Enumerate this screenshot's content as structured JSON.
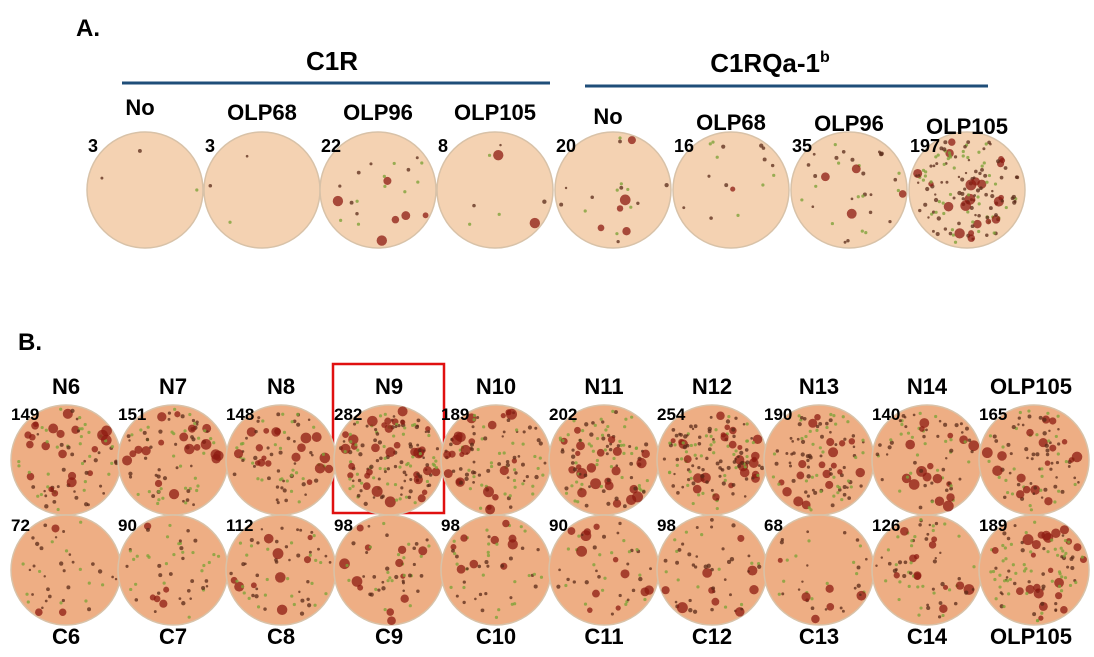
{
  "panel_a": {
    "label": "A.",
    "groups": [
      {
        "title": "C1R"
      },
      {
        "title": "C1RQa-1",
        "superscript": "b"
      }
    ],
    "wells": [
      {
        "label": "No",
        "count": 3
      },
      {
        "label": "OLP68",
        "count": 3
      },
      {
        "label": "OLP96",
        "count": 22
      },
      {
        "label": "OLP105",
        "count": 8
      },
      {
        "label": "No",
        "count": 20
      },
      {
        "label": "OLP68",
        "count": 16
      },
      {
        "label": "OLP96",
        "count": 35
      },
      {
        "label": "OLP105",
        "count": 197
      }
    ]
  },
  "panel_b": {
    "label": "B.",
    "rows": [
      {
        "wells": [
          {
            "label": "N6",
            "count": 149
          },
          {
            "label": "N7",
            "count": 151
          },
          {
            "label": "N8",
            "count": 148
          },
          {
            "label": "N9",
            "count": 282
          },
          {
            "label": "N10",
            "count": 189
          },
          {
            "label": "N11",
            "count": 202
          },
          {
            "label": "N12",
            "count": 254
          },
          {
            "label": "N13",
            "count": 190
          },
          {
            "label": "N14",
            "count": 140
          },
          {
            "label": "OLP105",
            "count": 165
          }
        ]
      },
      {
        "wells": [
          {
            "label": "C6",
            "count": 72
          },
          {
            "label": "C7",
            "count": 90
          },
          {
            "label": "C8",
            "count": 112
          },
          {
            "label": "C9",
            "count": 98
          },
          {
            "label": "C10",
            "count": 98
          },
          {
            "label": "C11",
            "count": 90
          },
          {
            "label": "C12",
            "count": 98
          },
          {
            "label": "C13",
            "count": 68
          },
          {
            "label": "C14",
            "count": 126
          },
          {
            "label": "OLP105",
            "count": 189
          }
        ]
      }
    ]
  }
}
